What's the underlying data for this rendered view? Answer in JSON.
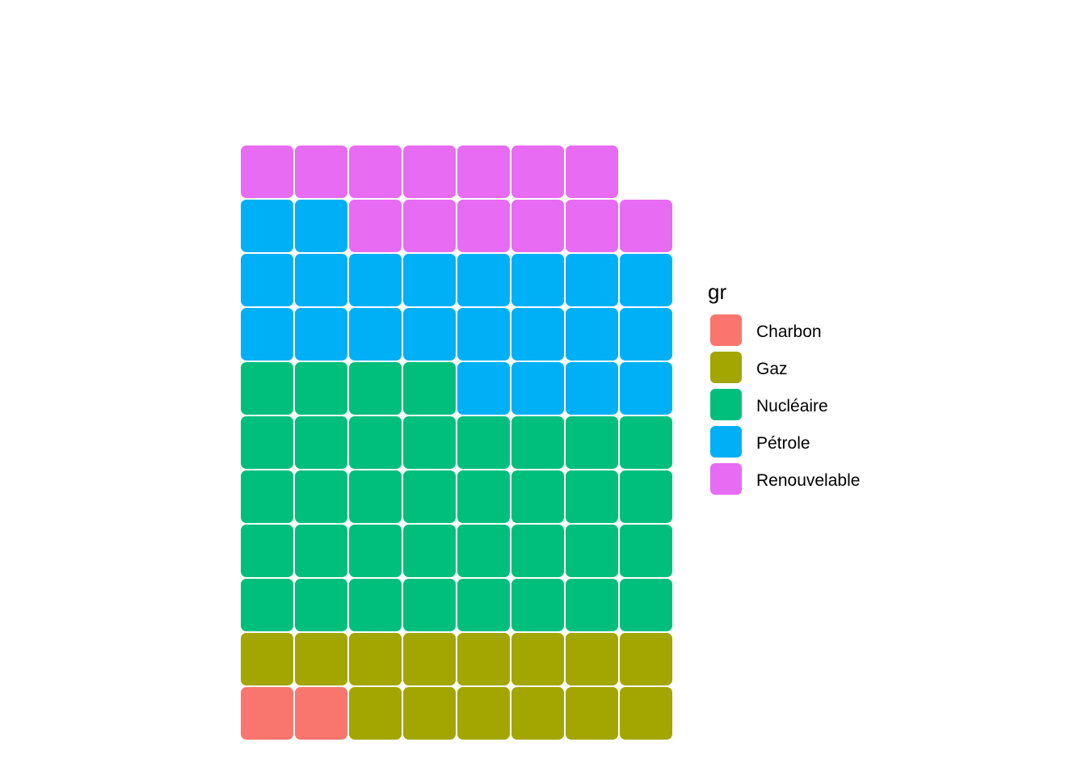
{
  "chart_data": {
    "type": "waffle",
    "columns": 8,
    "fill_order": "row-major from bottom-left",
    "categories": [
      "Charbon",
      "Gaz",
      "Nucléaire",
      "Pétrole",
      "Renouvelable"
    ],
    "values": [
      2,
      14,
      36,
      22,
      13
    ],
    "colors": [
      "#F8766D",
      "#A3A500",
      "#00BF7D",
      "#00B0F6",
      "#E76BF3"
    ],
    "legend": {
      "title": "gr",
      "position": "right"
    },
    "title": "",
    "xlabel": "",
    "ylabel": "",
    "grid": false
  }
}
